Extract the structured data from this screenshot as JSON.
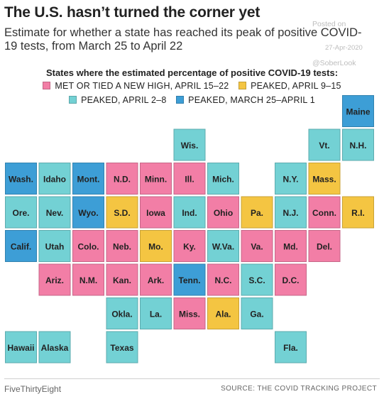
{
  "header": {
    "title": "The U.S. hasn’t turned the corner yet",
    "subtitle": "Estimate for whether a state has reached its peak of positive COVID-19 tests, from March 25 to April 22"
  },
  "watermark": {
    "posted": "Posted on",
    "date": "27-Apr-2020",
    "handle": "@SoberLook"
  },
  "legend": {
    "title": "States where the estimated percentage of positive COVID-19 tests:",
    "items": [
      {
        "key": "new_high",
        "label": "MET OR TIED A NEW HIGH, APRIL 15–22",
        "color": "#f27ea6"
      },
      {
        "key": "apr9_15",
        "label": "PEAKED, APRIL 9–15",
        "color": "#f4c542"
      },
      {
        "key": "apr2_8",
        "label": "PEAKED, APRIL 2–8",
        "color": "#73d1d4"
      },
      {
        "key": "mar25_apr1",
        "label": "PEAKED, MARCH 25–APRIL 1",
        "color": "#3d9ed6"
      }
    ]
  },
  "chart_data": {
    "type": "table",
    "categories": [
      "MET OR TIED A NEW HIGH, APRIL 15–22",
      "PEAKED, APRIL 9–15",
      "PEAKED, APRIL 2–8",
      "PEAKED, MARCH 25–APRIL 1"
    ],
    "states": [
      {
        "label": "Maine",
        "row": 0,
        "col": 10,
        "category": "mar25_apr1"
      },
      {
        "label": "Wis.",
        "row": 1,
        "col": 5,
        "category": "apr2_8"
      },
      {
        "label": "Vt.",
        "row": 1,
        "col": 9,
        "category": "apr2_8"
      },
      {
        "label": "N.H.",
        "row": 1,
        "col": 10,
        "category": "apr2_8"
      },
      {
        "label": "Wash.",
        "row": 2,
        "col": 0,
        "category": "mar25_apr1"
      },
      {
        "label": "Idaho",
        "row": 2,
        "col": 1,
        "category": "apr2_8"
      },
      {
        "label": "Mont.",
        "row": 2,
        "col": 2,
        "category": "mar25_apr1"
      },
      {
        "label": "N.D.",
        "row": 2,
        "col": 3,
        "category": "new_high"
      },
      {
        "label": "Minn.",
        "row": 2,
        "col": 4,
        "category": "new_high"
      },
      {
        "label": "Ill.",
        "row": 2,
        "col": 5,
        "category": "new_high"
      },
      {
        "label": "Mich.",
        "row": 2,
        "col": 6,
        "category": "apr2_8"
      },
      {
        "label": "N.Y.",
        "row": 2,
        "col": 8,
        "category": "apr2_8"
      },
      {
        "label": "Mass.",
        "row": 2,
        "col": 9,
        "category": "apr9_15"
      },
      {
        "label": "Ore.",
        "row": 3,
        "col": 0,
        "category": "apr2_8"
      },
      {
        "label": "Nev.",
        "row": 3,
        "col": 1,
        "category": "apr2_8"
      },
      {
        "label": "Wyo.",
        "row": 3,
        "col": 2,
        "category": "mar25_apr1"
      },
      {
        "label": "S.D.",
        "row": 3,
        "col": 3,
        "category": "apr9_15"
      },
      {
        "label": "Iowa",
        "row": 3,
        "col": 4,
        "category": "new_high"
      },
      {
        "label": "Ind.",
        "row": 3,
        "col": 5,
        "category": "apr2_8"
      },
      {
        "label": "Ohio",
        "row": 3,
        "col": 6,
        "category": "new_high"
      },
      {
        "label": "Pa.",
        "row": 3,
        "col": 7,
        "category": "apr9_15"
      },
      {
        "label": "N.J.",
        "row": 3,
        "col": 8,
        "category": "apr2_8"
      },
      {
        "label": "Conn.",
        "row": 3,
        "col": 9,
        "category": "new_high"
      },
      {
        "label": "R.I.",
        "row": 3,
        "col": 10,
        "category": "apr9_15"
      },
      {
        "label": "Calif.",
        "row": 4,
        "col": 0,
        "category": "mar25_apr1"
      },
      {
        "label": "Utah",
        "row": 4,
        "col": 1,
        "category": "apr2_8"
      },
      {
        "label": "Colo.",
        "row": 4,
        "col": 2,
        "category": "new_high"
      },
      {
        "label": "Neb.",
        "row": 4,
        "col": 3,
        "category": "new_high"
      },
      {
        "label": "Mo.",
        "row": 4,
        "col": 4,
        "category": "apr9_15"
      },
      {
        "label": "Ky.",
        "row": 4,
        "col": 5,
        "category": "new_high"
      },
      {
        "label": "W.Va.",
        "row": 4,
        "col": 6,
        "category": "apr2_8"
      },
      {
        "label": "Va.",
        "row": 4,
        "col": 7,
        "category": "new_high"
      },
      {
        "label": "Md.",
        "row": 4,
        "col": 8,
        "category": "new_high"
      },
      {
        "label": "Del.",
        "row": 4,
        "col": 9,
        "category": "new_high"
      },
      {
        "label": "Ariz.",
        "row": 5,
        "col": 1,
        "category": "new_high"
      },
      {
        "label": "N.M.",
        "row": 5,
        "col": 2,
        "category": "new_high"
      },
      {
        "label": "Kan.",
        "row": 5,
        "col": 3,
        "category": "new_high"
      },
      {
        "label": "Ark.",
        "row": 5,
        "col": 4,
        "category": "new_high"
      },
      {
        "label": "Tenn.",
        "row": 5,
        "col": 5,
        "category": "mar25_apr1"
      },
      {
        "label": "N.C.",
        "row": 5,
        "col": 6,
        "category": "new_high"
      },
      {
        "label": "S.C.",
        "row": 5,
        "col": 7,
        "category": "apr2_8"
      },
      {
        "label": "D.C.",
        "row": 5,
        "col": 8,
        "category": "new_high"
      },
      {
        "label": "Okla.",
        "row": 6,
        "col": 3,
        "category": "apr2_8"
      },
      {
        "label": "La.",
        "row": 6,
        "col": 4,
        "category": "apr2_8"
      },
      {
        "label": "Miss.",
        "row": 6,
        "col": 5,
        "category": "new_high"
      },
      {
        "label": "Ala.",
        "row": 6,
        "col": 6,
        "category": "apr9_15"
      },
      {
        "label": "Ga.",
        "row": 6,
        "col": 7,
        "category": "apr2_8"
      },
      {
        "label": "Hawaii",
        "row": 7,
        "col": 0,
        "category": "apr2_8"
      },
      {
        "label": "Alaska",
        "row": 7,
        "col": 1,
        "category": "apr2_8"
      },
      {
        "label": "Texas",
        "row": 7,
        "col": 3,
        "category": "apr2_8"
      },
      {
        "label": "Fla.",
        "row": 7,
        "col": 8,
        "category": "apr2_8"
      }
    ]
  },
  "footer": {
    "brand": "FiveThirtyEight",
    "source": "SOURCE: THE COVID TRACKING PROJECT"
  }
}
